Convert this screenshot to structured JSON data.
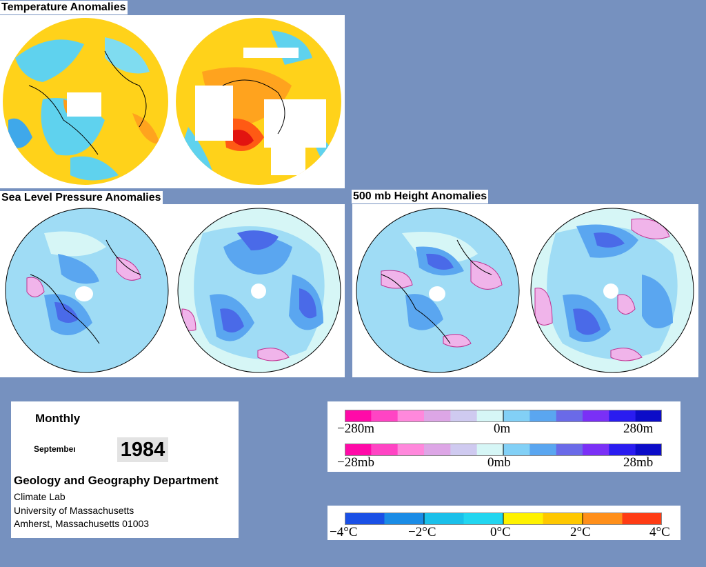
{
  "sections": {
    "temperature": {
      "title": "Temperature Anomalies"
    },
    "slp": {
      "title": "Sea Level Pressure Anomalies"
    },
    "height500": {
      "title": "500 mb Height Anomalies"
    }
  },
  "info": {
    "frequency": "Monthly",
    "month": "Septembeı",
    "year": "1984",
    "department": "Geology and Geography Department",
    "lines": [
      "Climate Lab",
      "University of Massachusetts",
      "Amherst, Massachusetts 01003"
    ]
  },
  "legends": {
    "height": {
      "min": "−280m",
      "mid": "0m",
      "max": "280m"
    },
    "pressure": {
      "min": "−28mb",
      "mid": "0mb",
      "max": "28mb"
    },
    "temperature": {
      "ticks": [
        "−4°C",
        "−2°C",
        "0°C",
        "2°C",
        "4°C"
      ]
    }
  },
  "colors": {
    "background": "#7691bf",
    "anomaly_scale": [
      "#ff0aa8",
      "#ff44c4",
      "#ff88dc",
      "#dda6e6",
      "#cfcaf0",
      "#d6f6f6",
      "#82d0f6",
      "#5aa6f0",
      "#6a6ae8",
      "#7a30f6",
      "#2a1cf0",
      "#0c0cc8"
    ],
    "temperature_scale": [
      "#1a50e6",
      "#1a8ce6",
      "#1ac0ea",
      "#22d6f0",
      "#fff200",
      "#ffc800",
      "#ff8f1a",
      "#ff3c14"
    ]
  }
}
